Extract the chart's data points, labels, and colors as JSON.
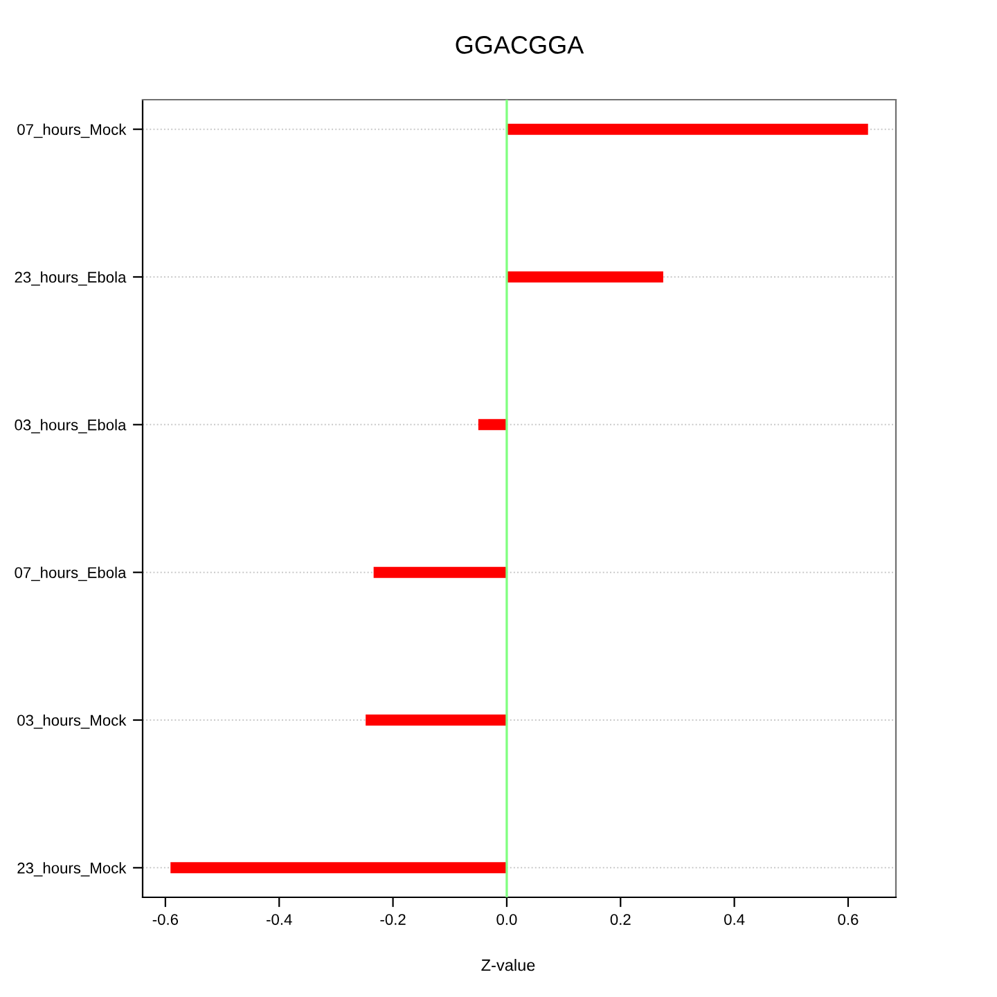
{
  "chart_data": {
    "type": "bar",
    "orientation": "horizontal",
    "title": "GGACGGA",
    "xlabel": "Z-value",
    "categories": [
      "07_hours_Mock",
      "23_hours_Ebola",
      "03_hours_Ebola",
      "07_hours_Ebola",
      "03_hours_Mock",
      "23_hours_Mock"
    ],
    "values": [
      0.635,
      0.275,
      -0.05,
      -0.234,
      -0.248,
      -0.591
    ],
    "color": "#ff0000",
    "xlim": [
      -0.64,
      0.684
    ],
    "xticks": [
      -0.6,
      -0.4,
      -0.2,
      {
        "value": 0,
        "label": "0.0"
      },
      0.2,
      0.4,
      0.6
    ],
    "ref_lines": [
      {
        "axis": "x",
        "value": 0,
        "color": "#80ff80"
      }
    ],
    "grid": "y",
    "line_style": "dotted"
  }
}
